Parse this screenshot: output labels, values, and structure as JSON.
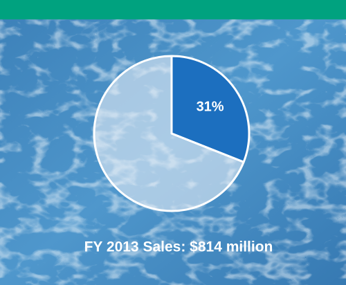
{
  "chart_data": {
    "type": "pie",
    "title": "FY 2013 Sales: $814 million",
    "values": [
      31,
      69
    ],
    "value_labels": [
      "31%",
      null
    ],
    "colors": [
      "#1c6fbf",
      "#e8eef6"
    ]
  }
}
